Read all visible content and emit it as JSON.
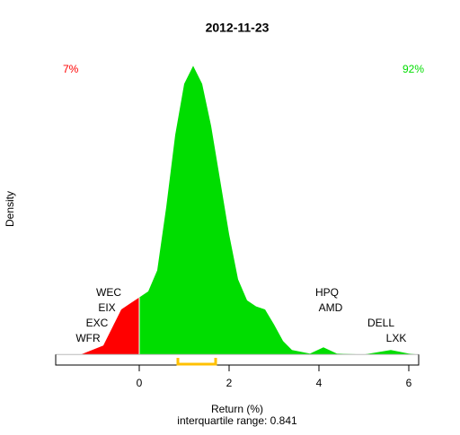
{
  "chart_data": {
    "type": "density",
    "title": "2012-11-23",
    "x_label": "Return (%)",
    "y_label": "Density",
    "subtitle": "interquartile range: 0.841",
    "x": [
      -1.3,
      -0.8,
      -0.6,
      -0.4,
      -0.2,
      0,
      0.2,
      0.4,
      0.6,
      0.8,
      1.0,
      1.2,
      1.4,
      1.6,
      1.8,
      2.0,
      2.2,
      2.4,
      2.6,
      2.8,
      3.0,
      3.2,
      3.4,
      3.8,
      4.1,
      4.4,
      5.0,
      5.6,
      6.0,
      6.2
    ],
    "density": [
      0,
      0.03,
      0.09,
      0.15,
      0.17,
      0.19,
      0.21,
      0.28,
      0.49,
      0.73,
      0.9,
      0.96,
      0.9,
      0.76,
      0.58,
      0.4,
      0.25,
      0.18,
      0.16,
      0.15,
      0.1,
      0.045,
      0.015,
      0.003,
      0.024,
      0.003,
      0,
      0.015,
      0.003,
      0
    ],
    "fill_split": 0,
    "below_color": "#ff0000",
    "above_color": "#00dd00",
    "below_share": "7%",
    "above_share": "92%",
    "iqr_range": [
      0.86,
      1.7
    ],
    "iqr_color": "#ffc000",
    "labels_left": [
      "WEC",
      "EIX",
      "EXC",
      "WFR"
    ],
    "labels_right": [
      "HPQ",
      "AMD",
      "DELL",
      "LXK"
    ],
    "xlim": [
      -1.86,
      6.22
    ],
    "ylim": [
      -0.035,
      1
    ],
    "xticks": [
      0,
      2,
      4,
      6
    ]
  }
}
